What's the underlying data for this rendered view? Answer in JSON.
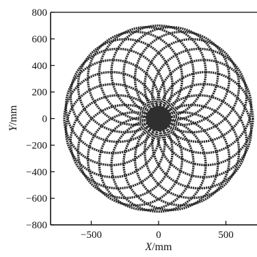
{
  "chart_data": {
    "type": "line",
    "title": "",
    "xlabel": "X/mm",
    "ylabel": "Y/mm",
    "xlabel_var": "X",
    "xlabel_unit": "/mm",
    "ylabel_var": "Y",
    "ylabel_unit": "/mm",
    "xlim": [
      -720,
      750
    ],
    "ylim": [
      -800,
      800
    ],
    "xticks": [
      -500,
      0,
      500
    ],
    "yticks": [
      800,
      600,
      400,
      200,
      0,
      -200,
      -400,
      -600,
      -800
    ],
    "xtick_labels": [
      "−500",
      "0",
      "500"
    ],
    "ytick_labels": [
      "800",
      "600",
      "400",
      "200",
      "0",
      "−200",
      "−400",
      "−600",
      "−800"
    ],
    "grid": false,
    "legend": "none",
    "pattern": {
      "description": "rosette of overlapping circles through the origin",
      "circle_count": 24,
      "circle_radius": 350,
      "center_distance": 350,
      "outer_radius": 700
    },
    "colors": {
      "line": "#2f2f2f",
      "axis": "#000000"
    }
  }
}
